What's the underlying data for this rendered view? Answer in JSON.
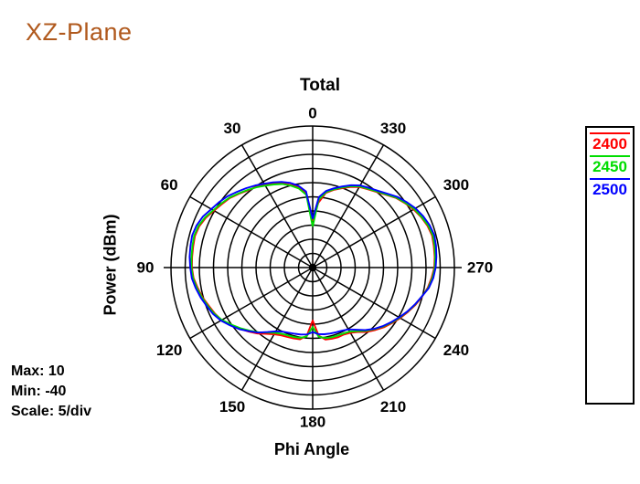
{
  "title": "XZ-Plane",
  "chart": {
    "title": "Total",
    "y_axis_label": "Power  (dBm)",
    "x_axis_label": "Phi Angle",
    "annotations": {
      "max": "Max: 10",
      "min": "Min: -40",
      "scale": "Scale: 5/div"
    }
  },
  "legend": {
    "entries": [
      {
        "label": "2400",
        "color": "#ff0000"
      },
      {
        "label": "2450",
        "color": "#00dd00"
      },
      {
        "label": "2500",
        "color": "#0000ff"
      }
    ]
  },
  "colors": {
    "title_text": "#b0591d",
    "grid": "#000000",
    "background": "#ffffff"
  },
  "chart_data": {
    "type": "line",
    "subtype": "polar",
    "title": "Total",
    "radial_axis": {
      "label": "Power (dBm)",
      "min": -40,
      "max": 10,
      "step": 5,
      "rings": 10
    },
    "angular_axis": {
      "label": "Phi Angle",
      "unit": "degrees",
      "direction": "counterclockwise",
      "zero_position": "top",
      "tick_labels": [
        0,
        30,
        60,
        90,
        120,
        150,
        180,
        210,
        240,
        270,
        300,
        330
      ]
    },
    "angle_step_deg": 5,
    "legend_position": "right",
    "grid": true,
    "series": [
      {
        "name": "2400",
        "color": "#ff0000",
        "values": [
          -23.5,
          -13.8,
          -11.2,
          -9.8,
          -8.2,
          -7.0,
          -6.3,
          -5.2,
          -4.4,
          -3.2,
          -1.8,
          -0.9,
          0.2,
          1.6,
          2.6,
          3.0,
          2.8,
          2.7,
          2.6,
          2.2,
          1.2,
          0.3,
          -0.9,
          -1.8,
          -2.9,
          -4.6,
          -6.4,
          -8.0,
          -9.6,
          -11.4,
          -12.8,
          -13.6,
          -13.9,
          -14.1,
          -14.3,
          -15.8,
          -21.3,
          -15.9,
          -14.2,
          -14.0,
          -13.8,
          -13.9,
          -13.4,
          -12.2,
          -10.3,
          -8.8,
          -7.2,
          -5.8,
          -4.3,
          -2.9,
          -1.4,
          -0.1,
          1.2,
          2.1,
          2.9,
          3.2,
          3.4,
          3.6,
          3.1,
          2.2,
          1.1,
          -0.3,
          -1.7,
          -3.6,
          -5.1,
          -6.2,
          -7.1,
          -8.6,
          -10.2,
          -11.6,
          -13.2,
          -17.0,
          -23.5
        ]
      },
      {
        "name": "2450",
        "color": "#00dd00",
        "values": [
          -25.5,
          -14.2,
          -11.6,
          -10.0,
          -8.6,
          -7.6,
          -6.6,
          -5.4,
          -4.2,
          -3.0,
          -1.6,
          -0.6,
          0.5,
          1.9,
          2.9,
          3.3,
          3.1,
          2.9,
          2.8,
          2.4,
          1.5,
          0.5,
          -0.6,
          -1.6,
          -3.0,
          -4.9,
          -6.7,
          -8.5,
          -10.2,
          -12.0,
          -13.4,
          -14.2,
          -14.5,
          -14.6,
          -14.8,
          -15.6,
          -19.0,
          -15.5,
          -14.7,
          -14.5,
          -14.4,
          -14.3,
          -13.9,
          -12.6,
          -10.8,
          -9.2,
          -7.6,
          -6.1,
          -4.6,
          -3.1,
          -1.6,
          -0.2,
          1.4,
          2.4,
          3.1,
          3.4,
          3.7,
          3.9,
          3.4,
          2.4,
          1.4,
          -0.1,
          -1.5,
          -3.4,
          -4.9,
          -6.0,
          -6.9,
          -8.3,
          -9.9,
          -11.4,
          -12.9,
          -16.0,
          -25.5
        ]
      },
      {
        "name": "2500",
        "color": "#0000ff",
        "values": [
          -22.8,
          -13.0,
          -10.6,
          -9.0,
          -7.8,
          -6.8,
          -5.8,
          -4.6,
          -3.4,
          -2.2,
          -0.8,
          0.3,
          1.3,
          2.7,
          3.6,
          4.0,
          3.8,
          3.6,
          3.2,
          2.8,
          1.9,
          0.9,
          -0.2,
          -1.2,
          -2.6,
          -4.4,
          -6.2,
          -8.2,
          -10.0,
          -12.2,
          -14.0,
          -15.0,
          -15.5,
          -15.8,
          -16.0,
          -16.3,
          -17.2,
          -16.4,
          -16.1,
          -15.9,
          -15.7,
          -15.4,
          -14.8,
          -13.2,
          -11.2,
          -9.4,
          -7.8,
          -6.3,
          -4.8,
          -3.2,
          -1.7,
          -0.2,
          1.6,
          2.7,
          3.4,
          3.8,
          4.2,
          4.4,
          3.9,
          3.0,
          1.9,
          0.4,
          -1.1,
          -3.0,
          -4.5,
          -5.6,
          -6.5,
          -7.9,
          -9.5,
          -11.0,
          -12.5,
          -15.0,
          -22.8
        ]
      }
    ]
  }
}
